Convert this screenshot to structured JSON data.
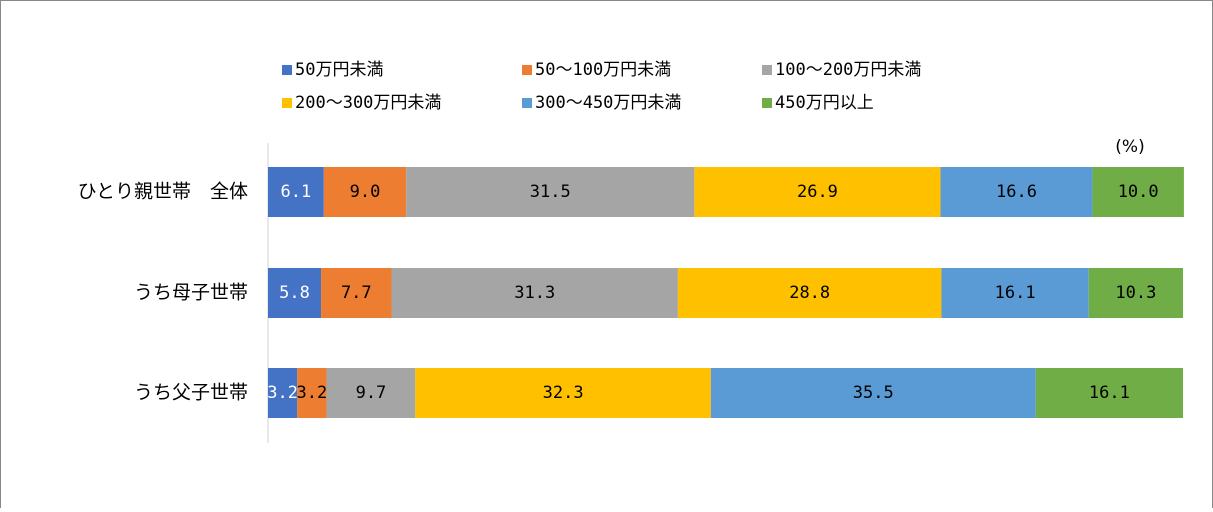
{
  "chart_data": {
    "type": "stacked-bar",
    "orientation": "horizontal",
    "annotation": "(%)",
    "categories": [
      "ひとり親世帯　全体",
      "うち母子世帯",
      "うち父子世帯"
    ],
    "xlim": [
      0,
      100
    ],
    "series": [
      {
        "name": "50万円未満",
        "color": "#4472c4",
        "label_color": "#ffffff",
        "values": [
          6.1,
          5.8,
          3.2
        ],
        "value_labels": [
          "6.1",
          "5.8",
          "3.2"
        ]
      },
      {
        "name": "50～100万円未満",
        "color": "#ed7d31",
        "label_color": "#000000",
        "values": [
          9,
          7.7,
          3.2
        ],
        "value_labels": [
          "9.0",
          "7.7",
          "3.2"
        ]
      },
      {
        "name": "100～200万円未満",
        "color": "#a5a5a5",
        "label_color": "#000000",
        "values": [
          31.5,
          31.3,
          9.7
        ],
        "value_labels": [
          "31.5",
          "31.3",
          "9.7"
        ]
      },
      {
        "name": "200～300万円未満",
        "color": "#ffc000",
        "label_color": "#000000",
        "values": [
          26.9,
          28.8,
          32.3
        ],
        "value_labels": [
          "26.9",
          "28.8",
          "32.3"
        ]
      },
      {
        "name": "300～450万円未満",
        "color": "#5b9bd5",
        "label_color": "#000000",
        "values": [
          16.6,
          16.1,
          35.5
        ],
        "value_labels": [
          "16.6",
          "16.1",
          "35.5"
        ]
      },
      {
        "name": "450万円以上",
        "color": "#70ad47",
        "label_color": "#000000",
        "values": [
          10,
          10.3,
          16.1
        ],
        "value_labels": [
          "10.0",
          "10.3",
          "16.1"
        ]
      }
    ]
  }
}
